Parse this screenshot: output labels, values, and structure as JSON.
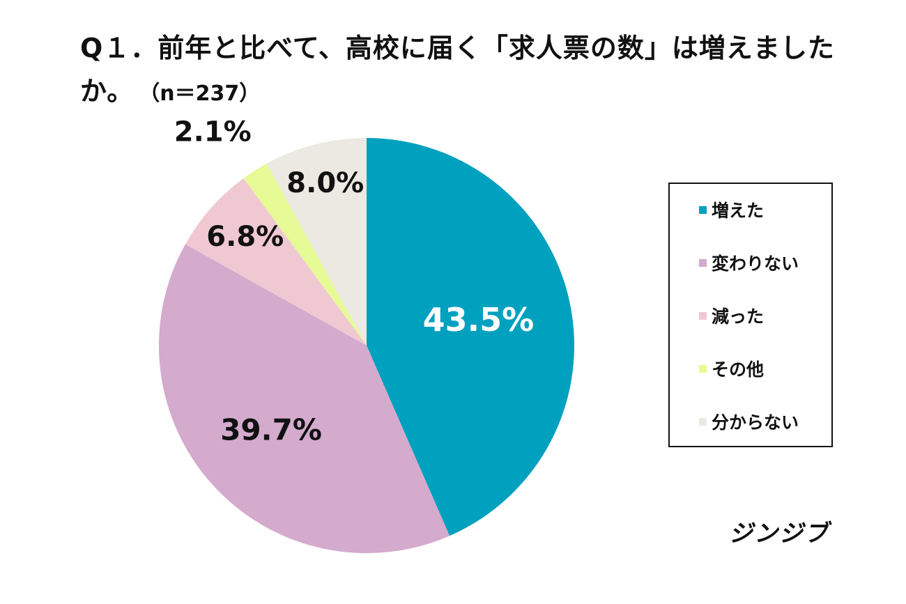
{
  "title": {
    "line1": "Q１．前年と比べて、高校に届く「求人票の数」は増えました",
    "line2": "か。",
    "n_label": "（n＝237）"
  },
  "brand": "ジンジブ",
  "chart_data": {
    "type": "pie",
    "start": "12 o'clock",
    "direction": "clockwise",
    "title": "Q１．前年と比べて、高校に届く「求人票の数」は増えましたか。（n＝237）",
    "legend_position": "right",
    "slices": [
      {
        "name": "増えた",
        "value": 43.5,
        "label": "43.5%",
        "color": "#00a0bf",
        "label_color": "#ffffff"
      },
      {
        "name": "変わりない",
        "value": 39.7,
        "label": "39.7%",
        "color": "#d4aacd",
        "label_color": "#111111"
      },
      {
        "name": "減った",
        "value": 6.8,
        "label": "6.8%",
        "color": "#f0c8d2",
        "label_color": "#111111"
      },
      {
        "name": "その他",
        "value": 2.1,
        "label": "2.1%",
        "color": "#e6fa96",
        "label_color": "#111111"
      },
      {
        "name": "分からない",
        "value": 8.0,
        "label": "8.0%",
        "color": "#ece9e2",
        "label_color": "#111111"
      }
    ]
  }
}
